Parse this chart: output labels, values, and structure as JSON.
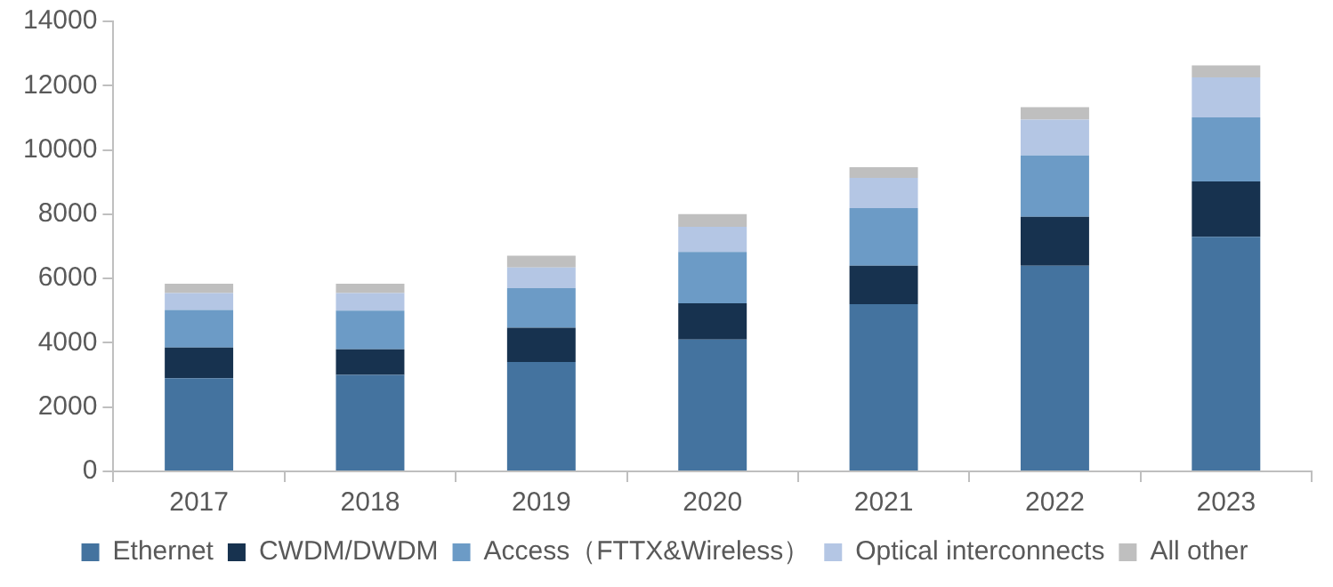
{
  "chart_data": {
    "type": "bar",
    "stacked": true,
    "categories": [
      "2017",
      "2018",
      "2019",
      "2020",
      "2021",
      "2022",
      "2023"
    ],
    "series": [
      {
        "name": "Ethernet",
        "color": "#44739f",
        "values": [
          2900,
          3000,
          3400,
          4100,
          5200,
          6400,
          7300
        ]
      },
      {
        "name": "CWDM/DWDM",
        "color": "#17324f",
        "values": [
          950,
          800,
          1070,
          1130,
          1200,
          1520,
          1720
        ]
      },
      {
        "name": "Access（FTTX&Wireless）",
        "color": "#6c9bc6",
        "values": [
          1170,
          1200,
          1230,
          1600,
          1790,
          1910,
          1990
        ]
      },
      {
        "name": "Optical interconnects",
        "color": "#b4c6e4",
        "values": [
          530,
          550,
          640,
          780,
          940,
          1110,
          1250
        ]
      },
      {
        "name": "All other",
        "color": "#bfbfbf",
        "values": [
          290,
          290,
          370,
          390,
          330,
          390,
          370
        ]
      }
    ],
    "ylim": [
      0,
      14000
    ],
    "yticks": [
      0,
      2000,
      4000,
      6000,
      8000,
      10000,
      12000,
      14000
    ],
    "grid": false,
    "legend": "bottom"
  }
}
